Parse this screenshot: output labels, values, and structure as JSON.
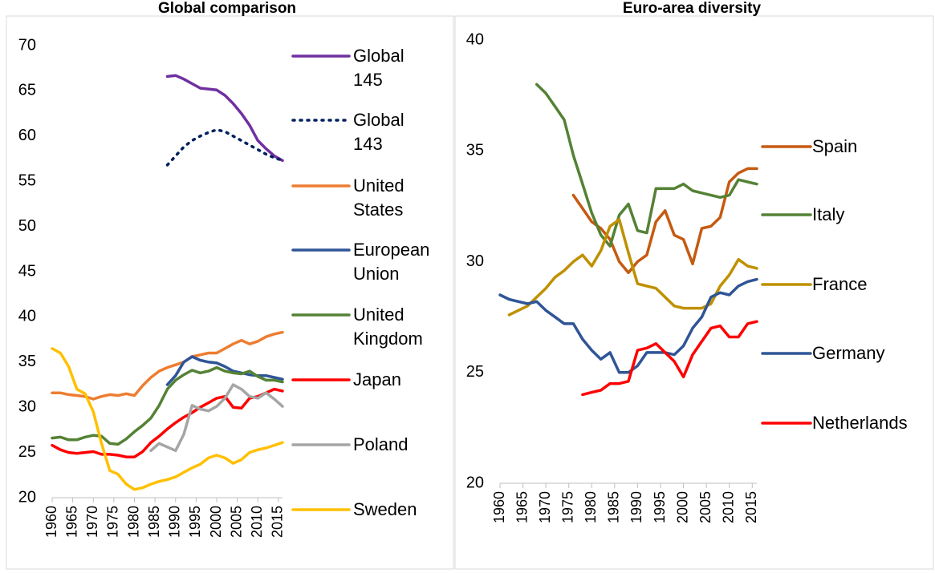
{
  "chart_data": [
    {
      "type": "line",
      "title": "Global comparison",
      "x": [
        1960,
        1962,
        1964,
        1966,
        1968,
        1970,
        1972,
        1974,
        1976,
        1978,
        1980,
        1982,
        1984,
        1986,
        1988,
        1990,
        1992,
        1994,
        1996,
        1998,
        2000,
        2002,
        2004,
        2006,
        2008,
        2010,
        2012,
        2014,
        2016
      ],
      "xlim": [
        1960,
        2016
      ],
      "xticks": [
        1960,
        1965,
        1970,
        1975,
        1980,
        1985,
        1990,
        1995,
        2000,
        2005,
        2010,
        2015
      ],
      "ylim": [
        20,
        70
      ],
      "yticks": [
        20,
        25,
        30,
        35,
        40,
        45,
        50,
        55,
        60,
        65,
        70
      ],
      "series": [
        {
          "name": "Global 145",
          "color": "#7030a0",
          "style": "solid",
          "values": [
            null,
            null,
            null,
            null,
            null,
            null,
            null,
            null,
            null,
            null,
            null,
            null,
            null,
            null,
            66.6,
            66.7,
            66.3,
            65.8,
            65.3,
            65.2,
            65.1,
            64.5,
            63.6,
            62.5,
            61.2,
            59.5,
            58.6,
            57.8,
            57.3
          ]
        },
        {
          "name": "Global 143",
          "color": "#002060",
          "style": "dotted",
          "values": [
            null,
            null,
            null,
            null,
            null,
            null,
            null,
            null,
            null,
            null,
            null,
            null,
            null,
            null,
            56.8,
            57.8,
            58.8,
            59.5,
            60.0,
            60.4,
            60.7,
            60.5,
            60.0,
            59.5,
            59.0,
            58.5,
            58.0,
            57.6,
            57.3
          ]
        },
        {
          "name": "United States",
          "color": "#ed7d31",
          "style": "solid",
          "values": [
            31.6,
            31.6,
            31.4,
            31.3,
            31.2,
            30.9,
            31.2,
            31.4,
            31.3,
            31.5,
            31.3,
            32.4,
            33.3,
            34.0,
            34.4,
            34.7,
            35.0,
            35.6,
            35.8,
            36.0,
            36.0,
            36.5,
            37.0,
            37.4,
            37.0,
            37.3,
            37.8,
            38.1,
            38.3
          ]
        },
        {
          "name": "European Union",
          "color": "#2f5597",
          "style": "solid",
          "values": [
            null,
            null,
            null,
            null,
            null,
            null,
            null,
            null,
            null,
            null,
            null,
            null,
            null,
            null,
            32.5,
            33.5,
            35.0,
            35.6,
            35.2,
            35.0,
            34.9,
            34.5,
            34.0,
            33.8,
            33.6,
            33.5,
            33.5,
            33.3,
            33.1
          ]
        },
        {
          "name": "United Kingdom",
          "color": "#548235",
          "style": "solid",
          "values": [
            26.6,
            26.7,
            26.4,
            26.4,
            26.7,
            26.9,
            26.8,
            26.0,
            25.9,
            26.5,
            27.3,
            28.0,
            28.8,
            30.2,
            32.0,
            33.0,
            33.6,
            34.1,
            33.8,
            34.0,
            34.4,
            34.0,
            33.8,
            33.7,
            34.0,
            33.4,
            33.0,
            33.0,
            32.8
          ]
        },
        {
          "name": "Japan",
          "color": "#ff0000",
          "style": "solid",
          "values": [
            25.8,
            25.3,
            25.0,
            24.9,
            25.0,
            25.1,
            24.8,
            24.8,
            24.7,
            24.5,
            24.5,
            25.1,
            26.1,
            26.8,
            27.6,
            28.3,
            28.9,
            29.4,
            30.0,
            30.5,
            31.0,
            31.2,
            30.0,
            29.9,
            31.0,
            31.2,
            31.6,
            32.0,
            31.8
          ]
        },
        {
          "name": "Poland",
          "color": "#a5a5a5",
          "style": "solid",
          "values": [
            null,
            null,
            null,
            null,
            null,
            null,
            null,
            null,
            null,
            null,
            null,
            null,
            25.2,
            26.0,
            25.6,
            25.2,
            27.0,
            30.2,
            29.8,
            29.6,
            30.1,
            31.0,
            32.5,
            32.0,
            31.2,
            31.0,
            31.6,
            30.9,
            30.1
          ]
        },
        {
          "name": "Sweden",
          "color": "#ffc000",
          "style": "solid",
          "values": [
            36.5,
            36.0,
            34.5,
            32.0,
            31.5,
            29.5,
            26.0,
            23.0,
            22.6,
            21.5,
            20.9,
            21.1,
            21.5,
            21.8,
            22.0,
            22.3,
            22.8,
            23.3,
            23.7,
            24.4,
            24.7,
            24.4,
            23.8,
            24.2,
            25.0,
            25.3,
            25.5,
            25.8,
            26.1
          ]
        }
      ]
    },
    {
      "type": "line",
      "title": "Euro-area diversity",
      "x": [
        1960,
        1962,
        1964,
        1966,
        1968,
        1970,
        1972,
        1974,
        1976,
        1978,
        1980,
        1982,
        1984,
        1986,
        1988,
        1990,
        1992,
        1994,
        1996,
        1998,
        2000,
        2002,
        2004,
        2006,
        2008,
        2010,
        2012,
        2014,
        2016
      ],
      "xlim": [
        1960,
        2016
      ],
      "xticks": [
        1960,
        1965,
        1970,
        1975,
        1980,
        1985,
        1990,
        1995,
        2000,
        2005,
        2010,
        2015
      ],
      "ylim": [
        20,
        40
      ],
      "yticks": [
        20,
        25,
        30,
        35,
        40
      ],
      "series": [
        {
          "name": "Spain",
          "color": "#c55a11",
          "style": "solid",
          "values": [
            null,
            null,
            null,
            null,
            null,
            null,
            null,
            null,
            33.0,
            32.4,
            31.8,
            31.5,
            31.0,
            30.0,
            29.5,
            30.0,
            30.3,
            31.8,
            32.3,
            31.2,
            31.0,
            29.9,
            31.5,
            31.6,
            32.0,
            33.6,
            34.0,
            34.2,
            34.2
          ]
        },
        {
          "name": "Italy",
          "color": "#548235",
          "style": "solid",
          "values": [
            null,
            null,
            null,
            null,
            38.0,
            37.6,
            37.0,
            36.4,
            34.8,
            33.5,
            32.2,
            31.2,
            30.7,
            32.1,
            32.6,
            31.4,
            31.3,
            33.3,
            33.3,
            33.3,
            33.5,
            33.2,
            33.1,
            33.0,
            32.9,
            33.0,
            33.7,
            33.6,
            33.5
          ]
        },
        {
          "name": "France",
          "color": "#bf9000",
          "style": "solid",
          "values": [
            null,
            27.6,
            27.8,
            28.0,
            28.4,
            28.8,
            29.3,
            29.6,
            30.0,
            30.3,
            29.8,
            30.5,
            31.6,
            31.9,
            30.4,
            29.0,
            28.9,
            28.8,
            28.4,
            28.0,
            27.9,
            27.9,
            27.9,
            28.1,
            28.9,
            29.4,
            30.1,
            29.8,
            29.7
          ]
        },
        {
          "name": "Germany",
          "color": "#2f5597",
          "style": "solid",
          "values": [
            28.5,
            28.3,
            28.2,
            28.1,
            28.2,
            27.8,
            27.5,
            27.2,
            27.2,
            26.5,
            26.0,
            25.6,
            25.9,
            25.0,
            25.0,
            25.3,
            25.9,
            25.9,
            25.9,
            25.8,
            26.2,
            27.0,
            27.5,
            28.4,
            28.6,
            28.5,
            28.9,
            29.1,
            29.2
          ]
        },
        {
          "name": "Netherlands",
          "color": "#ff0000",
          "style": "solid",
          "values": [
            null,
            null,
            null,
            null,
            null,
            null,
            null,
            null,
            null,
            24.0,
            24.1,
            24.2,
            24.5,
            24.5,
            24.6,
            26.0,
            26.1,
            26.3,
            25.9,
            25.5,
            24.8,
            25.8,
            26.4,
            27.0,
            27.1,
            26.6,
            26.6,
            27.2,
            27.3
          ]
        }
      ]
    }
  ]
}
